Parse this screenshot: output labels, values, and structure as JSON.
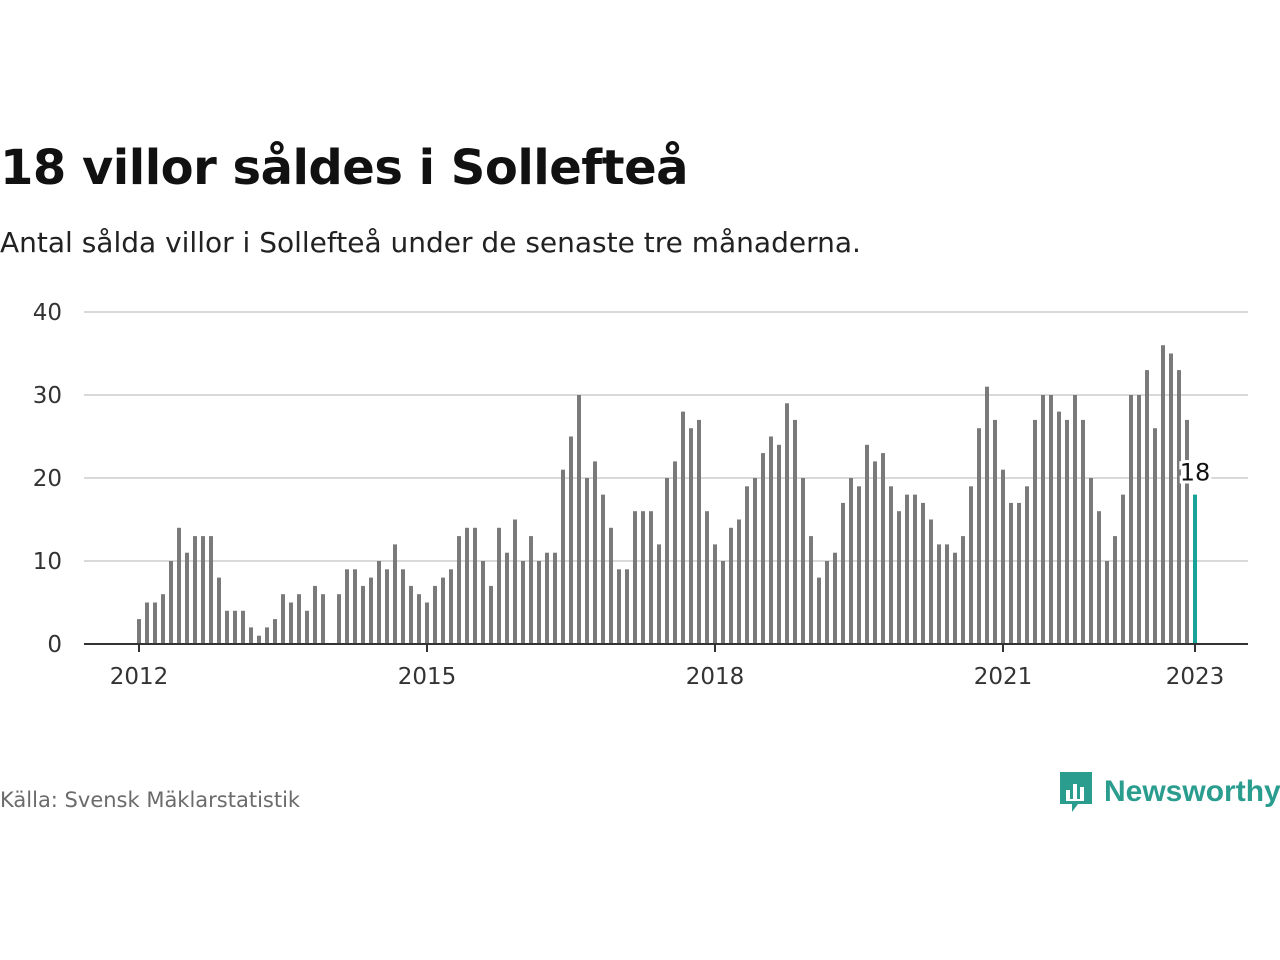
{
  "title": "18 villor såldes i Sollefteå",
  "subtitle": "Antal sålda villor i Sollefteå under de senaste tre månaderna.",
  "source": "Källa: Svensk Mäklarstatistik",
  "brand": {
    "name": "Newsworthy",
    "icon": "newsworthy-logo-icon"
  },
  "colors": {
    "bar": "#7a7a7a",
    "highlight": "#17a398",
    "grid": "#d9d9d9",
    "axis": "#333333",
    "brand": "#2a9d8f"
  },
  "chart_data": {
    "type": "bar",
    "title": "18 villor såldes i Sollefteå",
    "ylim": [
      0,
      40
    ],
    "yticks": [
      0,
      10,
      20,
      30,
      40
    ],
    "xticks": [
      "2012",
      "2015",
      "2018",
      "2021",
      "2023"
    ],
    "start": "2012-01",
    "interval": "month",
    "grid": true,
    "highlight": {
      "label": "18",
      "value": 18,
      "index": 132
    },
    "values": [
      3,
      5,
      5,
      6,
      10,
      14,
      11,
      13,
      13,
      13,
      8,
      4,
      4,
      4,
      2,
      1,
      2,
      3,
      6,
      5,
      6,
      4,
      7,
      6,
      null,
      6,
      9,
      9,
      7,
      8,
      10,
      9,
      12,
      9,
      7,
      6,
      5,
      7,
      8,
      9,
      13,
      14,
      14,
      10,
      7,
      14,
      11,
      15,
      10,
      13,
      10,
      11,
      11,
      21,
      25,
      30,
      20,
      22,
      18,
      14,
      9,
      9,
      16,
      16,
      16,
      12,
      20,
      22,
      28,
      26,
      27,
      16,
      12,
      10,
      14,
      15,
      19,
      20,
      23,
      25,
      24,
      29,
      27,
      20,
      13,
      8,
      10,
      11,
      17,
      20,
      19,
      24,
      22,
      23,
      19,
      16,
      18,
      18,
      17,
      15,
      12,
      12,
      11,
      13,
      19,
      26,
      31,
      27,
      21,
      17,
      17,
      19,
      27,
      30,
      30,
      28,
      27,
      30,
      27,
      20,
      16,
      10,
      13,
      18,
      30,
      30,
      33,
      26,
      36,
      35,
      33,
      27,
      18
    ]
  }
}
